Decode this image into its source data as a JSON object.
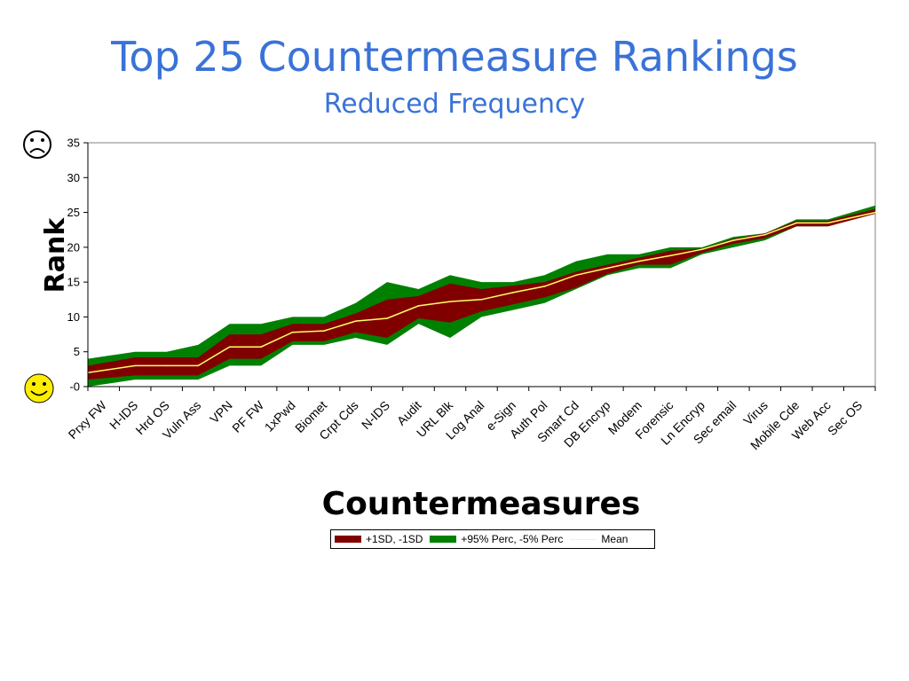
{
  "title": "Top 25 Countermeasure Rankings",
  "subtitle": "Reduced Frequency",
  "icons": {
    "top": "frown-face-icon",
    "bottom": "smiley-face-icon"
  },
  "colors": {
    "title": "#3a72d8",
    "sd_band": "#800000",
    "perc_band": "#008000",
    "mean": "#ffff66"
  },
  "chart_data": {
    "type": "area",
    "title": "Top 25 Countermeasure Rankings",
    "subtitle": "Reduced Frequency",
    "xlabel": "Countermeasures",
    "ylabel": "Rank",
    "ylim": [
      0,
      35
    ],
    "yticks": [
      35,
      30,
      25,
      20,
      15,
      10,
      5,
      0
    ],
    "ytick_labels": [
      "35",
      "30",
      "25",
      "20",
      "15",
      "10",
      "5",
      "-0"
    ],
    "grid": false,
    "legend_position": "bottom",
    "categories": [
      "Prxy FW",
      "H-IDS",
      "Hrd OS",
      "Vuln Ass",
      "VPN",
      "PF FW",
      "1xPwd",
      "Biomet",
      "Crpt Cds",
      "N-IDS",
      "Audit",
      "URL Blk",
      "Log Anal",
      "e-Sign",
      "Auth Pol",
      "Smart Cd",
      "DB Encryp",
      "Modem",
      "Forensic",
      "Ln Encryp",
      "Sec email",
      "Virus",
      "Mobile Cde",
      "Web Acc",
      "Sec OS"
    ],
    "series": [
      {
        "name": "+1SD, -1SD",
        "kind": "band",
        "upper": [
          3,
          4.2,
          4.2,
          4.2,
          7.5,
          7.5,
          9,
          9,
          10.5,
          12.5,
          13,
          14.8,
          14,
          14.5,
          15,
          16.5,
          17.5,
          18.5,
          19.5,
          19.8,
          21.2,
          22,
          23.8,
          23.8,
          25.5
        ],
        "lower": [
          1,
          1.6,
          1.6,
          1.6,
          4,
          4,
          6.5,
          6.5,
          7.8,
          7,
          9.8,
          9.2,
          10.8,
          11.8,
          12.8,
          14.2,
          16.2,
          17.5,
          17.5,
          19.2,
          20.5,
          21.3,
          23,
          23,
          24.8
        ]
      },
      {
        "name": "+95% Perc, -5% Perc",
        "kind": "band",
        "upper": [
          4,
          5,
          5,
          6,
          9,
          9,
          10,
          10,
          12,
          15,
          14,
          16,
          15,
          15,
          16,
          18,
          19,
          19,
          20,
          20,
          21.5,
          22,
          24,
          24,
          26
        ],
        "lower": [
          0,
          1,
          1,
          1,
          3,
          3,
          6,
          6,
          7,
          6,
          9,
          7,
          10,
          11,
          12,
          14,
          16,
          17,
          17,
          19,
          20,
          21,
          23,
          23,
          25
        ]
      },
      {
        "name": "Mean",
        "kind": "line",
        "values": [
          2,
          3,
          3,
          3,
          5.7,
          5.7,
          7.8,
          8,
          9.4,
          9.8,
          11.6,
          12.2,
          12.5,
          13.5,
          14.4,
          16,
          17,
          18,
          18.8,
          19.7,
          21,
          21.8,
          23.5,
          23.5,
          25
        ]
      }
    ]
  }
}
